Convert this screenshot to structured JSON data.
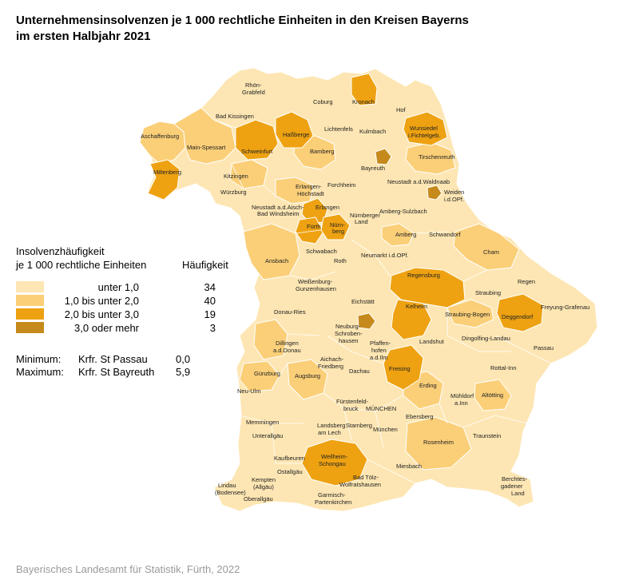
{
  "title_line1": "Unternehmensinsolvenzen je 1 000 rechtliche Einheiten in den Kreisen Bayerns",
  "title_line2": "im ersten Halbjahr 2021",
  "legend": {
    "heading_line1": "Insolvenzhäufigkeit",
    "heading_line2": "je 1 000 rechtliche Einheiten",
    "count_heading": "Häufigkeit",
    "classes": [
      {
        "label": "unter  1,0",
        "lower": "",
        "count": "34",
        "color": "#fde6b3"
      },
      {
        "label": "bis unter  2,0",
        "lower": "1,0",
        "count": "40",
        "color": "#fbcf78"
      },
      {
        "label": "bis unter  3,0",
        "lower": "2,0",
        "count": "19",
        "color": "#eea212"
      },
      {
        "label": "oder mehr",
        "lower": "3,0",
        "count": "3",
        "color": "#c68a1c"
      }
    ]
  },
  "stats": {
    "minimum_label": "Minimum:",
    "minimum_region": "Krfr. St Passau",
    "minimum_value": "0,0",
    "maximum_label": "Maximum:",
    "maximum_region": "Krfr. St Bayreuth",
    "maximum_value": "5,9"
  },
  "map_labels": [
    {
      "text": "Rhön-",
      "cls": 1
    },
    {
      "text": "Grabfeld",
      "cls": 1
    },
    {
      "text": "Coburg",
      "cls": 1
    },
    {
      "text": "Kronach",
      "cls": 1
    },
    {
      "text": "Bad Kissingen",
      "cls": 1
    },
    {
      "text": "Hof",
      "cls": 1
    },
    {
      "text": "Haßberge",
      "cls": 3
    },
    {
      "text": "Lichtenfels",
      "cls": 1
    },
    {
      "text": "Kulmbach",
      "cls": 1
    },
    {
      "text": "Wunsiedel",
      "cls": 3
    },
    {
      "text": "i.Fichtelgeb.",
      "cls": 3
    },
    {
      "text": "Aschaffenburg",
      "cls": 2
    },
    {
      "text": "Main-Spessart",
      "cls": 2
    },
    {
      "text": "Schweinfurt",
      "cls": 3
    },
    {
      "text": "Bamberg",
      "cls": 2
    },
    {
      "text": "Tirschenreuth",
      "cls": 2
    },
    {
      "text": "Bayreuth",
      "cls": 1
    },
    {
      "text": "Miltenberg",
      "cls": 3
    },
    {
      "text": "Kitzingen",
      "cls": 2
    },
    {
      "text": "Forchheim",
      "cls": 1
    },
    {
      "text": "Neustadt a.d.Waldnaab",
      "cls": 1
    },
    {
      "text": "Erlangen-",
      "cls": 2
    },
    {
      "text": "Höchstadt",
      "cls": 2
    },
    {
      "text": "Würzburg",
      "cls": 1
    },
    {
      "text": "Weiden",
      "cls": 1
    },
    {
      "text": "i.d.OPf.",
      "cls": 1
    },
    {
      "text": "Neustadt a.d.Aisch-",
      "cls": 1
    },
    {
      "text": "Bad Windsheim",
      "cls": 1
    },
    {
      "text": "Erlangen",
      "cls": 3
    },
    {
      "text": "Amberg-Sulzbach",
      "cls": 1
    },
    {
      "text": "Nürnberger",
      "cls": 1
    },
    {
      "text": "Land",
      "cls": 1
    },
    {
      "text": "Fürth",
      "cls": 3
    },
    {
      "text": "Nürn-",
      "cls": 3
    },
    {
      "text": "berg",
      "cls": 3
    },
    {
      "text": "Schwandorf",
      "cls": 1
    },
    {
      "text": "Amberg",
      "cls": 2
    },
    {
      "text": "Schwabach",
      "cls": 1
    },
    {
      "text": "Ansbach",
      "cls": 2
    },
    {
      "text": "Roth",
      "cls": 1
    },
    {
      "text": "Neumarkt i.d.OPf.",
      "cls": 1
    },
    {
      "text": "Cham",
      "cls": 2
    },
    {
      "text": "Regensburg",
      "cls": 3
    },
    {
      "text": "Weißenburg-",
      "cls": 1
    },
    {
      "text": "Gunzenhausen",
      "cls": 1
    },
    {
      "text": "Regen",
      "cls": 1
    },
    {
      "text": "Straubing",
      "cls": 1
    },
    {
      "text": "Eichstätt",
      "cls": 1
    },
    {
      "text": "Kelheim",
      "cls": 3
    },
    {
      "text": "Freyung-Grafenau",
      "cls": 1
    },
    {
      "text": "Donau-Ries",
      "cls": 1
    },
    {
      "text": "Straubing-Bogen",
      "cls": 2
    },
    {
      "text": "Deggendorf",
      "cls": 3
    },
    {
      "text": "Neuburg-",
      "cls": 1
    },
    {
      "text": "Schroben-",
      "cls": 1
    },
    {
      "text": "hausen",
      "cls": 1
    },
    {
      "text": "Dingolfing-Landau",
      "cls": 1
    },
    {
      "text": "Passau",
      "cls": 1
    },
    {
      "text": "Landshut",
      "cls": 1
    },
    {
      "text": "Dillingen",
      "cls": 2
    },
    {
      "text": "a.d.Donau",
      "cls": 2
    },
    {
      "text": "Pfaffen-",
      "cls": 1
    },
    {
      "text": "hofen",
      "cls": 1
    },
    {
      "text": "a.d.Ilm",
      "cls": 1
    },
    {
      "text": "Aichach-",
      "cls": 1
    },
    {
      "text": "Friedberg",
      "cls": 1
    },
    {
      "text": "Rottal-Inn",
      "cls": 1
    },
    {
      "text": "Freising",
      "cls": 3
    },
    {
      "text": "Dachau",
      "cls": 1
    },
    {
      "text": "Günzburg",
      "cls": 2
    },
    {
      "text": "Augsburg",
      "cls": 2
    },
    {
      "text": "Erding",
      "cls": 2
    },
    {
      "text": "Neu-Ulm",
      "cls": 1
    },
    {
      "text": "Mühldorf",
      "cls": 1
    },
    {
      "text": "a.Inn",
      "cls": 1
    },
    {
      "text": "Altötting",
      "cls": 2
    },
    {
      "text": "Fürstenfeld-",
      "cls": 1
    },
    {
      "text": "bruck",
      "cls": 1
    },
    {
      "text": "MÜNCHEN",
      "cls": 1
    },
    {
      "text": "Memmingen",
      "cls": 1
    },
    {
      "text": "Ebersberg",
      "cls": 1
    },
    {
      "text": "Landsberg",
      "cls": 1
    },
    {
      "text": "am Lech",
      "cls": 1
    },
    {
      "text": "Starnberg",
      "cls": 1
    },
    {
      "text": "München",
      "cls": 1
    },
    {
      "text": "Unterallgäu",
      "cls": 1
    },
    {
      "text": "Traunstein",
      "cls": 1
    },
    {
      "text": "Rosenheim",
      "cls": 2
    },
    {
      "text": "Weilheim-",
      "cls": 3
    },
    {
      "text": "Schongau",
      "cls": 3
    },
    {
      "text": "Kaufbeuren",
      "cls": 1
    },
    {
      "text": "Miesbach",
      "cls": 1
    },
    {
      "text": "Ostallgäu",
      "cls": 1
    },
    {
      "text": "Kempten",
      "cls": 1
    },
    {
      "text": "(Allgäu)",
      "cls": 1
    },
    {
      "text": "Bad Tölz-",
      "cls": 1
    },
    {
      "text": "Wolfratshausen",
      "cls": 1
    },
    {
      "text": "Berchtes-",
      "cls": 1
    },
    {
      "text": "gadener",
      "cls": 1
    },
    {
      "text": "Land",
      "cls": 1
    },
    {
      "text": "Lindau",
      "cls": 1
    },
    {
      "text": "(Bodensee)",
      "cls": 1
    },
    {
      "text": "Oberallgäu",
      "cls": 1
    },
    {
      "text": "Garmisch-",
      "cls": 1
    },
    {
      "text": "Partenkirchen",
      "cls": 1
    }
  ],
  "source": "Bayerisches Landesamt für Statistik, Fürth, 2022"
}
